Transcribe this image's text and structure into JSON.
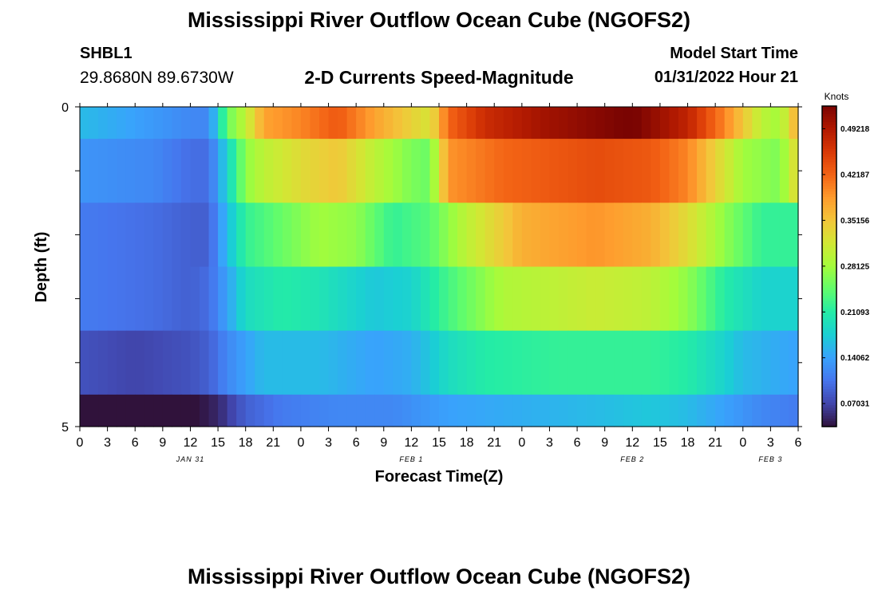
{
  "titles": {
    "top": "Mississippi River Outflow Ocean Cube (NGOFS2)",
    "bottom": "Mississippi River Outflow Ocean Cube (NGOFS2)"
  },
  "station": {
    "id": "SHBL1",
    "coords": "29.8680N  89.6730W"
  },
  "model_start": {
    "label": "Model Start Time",
    "value": "01/31/2022 Hour 21"
  },
  "chart_data": {
    "type": "heatmap",
    "title": "2-D Currents Speed-Magnitude",
    "xlabel": "Forecast Time(Z)",
    "ylabel": "Depth (ft)",
    "x_tick_labels": [
      "0",
      "3",
      "6",
      "9",
      "12",
      "15",
      "18",
      "21",
      "0",
      "3",
      "6",
      "9",
      "12",
      "15",
      "18",
      "21",
      "0",
      "3",
      "6",
      "9",
      "12",
      "15",
      "18",
      "21",
      "0",
      "3",
      "6"
    ],
    "date_labels": [
      {
        "label": "JAN 31",
        "hour": 12
      },
      {
        "label": "FEB 1",
        "hour": 36
      },
      {
        "label": "FEB 2",
        "hour": 60
      },
      {
        "label": "FEB 3",
        "hour": 75
      }
    ],
    "x_range_hours": [
      0,
      78
    ],
    "y_tick_labels": [
      "0",
      "5"
    ],
    "y_range": [
      0,
      5
    ],
    "colorbar": {
      "unit": "Knots",
      "range": [
        0.035,
        0.527
      ],
      "tick_labels": [
        "0.07031",
        "0.14062",
        "0.21093",
        "0.28125",
        "0.35156",
        "0.42187",
        "0.49218"
      ],
      "tick_values": [
        0.07031,
        0.14062,
        0.21093,
        0.28125,
        0.35156,
        0.42187,
        0.49218
      ],
      "colors": [
        "#30123b",
        "#4145ab",
        "#4675ed",
        "#39a2fc",
        "#1bcfd4",
        "#24eca6",
        "#61fc6c",
        "#a4fc3b",
        "#d1e834",
        "#f3c63a",
        "#fe9b2d",
        "#f36315",
        "#d93806",
        "#b11901",
        "#7a0402"
      ]
    },
    "depth_layers": [
      {
        "depth_range": [
          0,
          0.5
        ],
        "keys": [
          [
            0,
            0.16
          ],
          [
            6,
            0.14
          ],
          [
            12,
            0.12
          ],
          [
            14,
            0.12
          ],
          [
            15,
            0.18
          ],
          [
            16,
            0.25
          ],
          [
            18,
            0.3
          ],
          [
            20,
            0.38
          ],
          [
            24,
            0.4
          ],
          [
            28,
            0.43
          ],
          [
            32,
            0.38
          ],
          [
            38,
            0.32
          ],
          [
            40,
            0.42
          ],
          [
            44,
            0.47
          ],
          [
            50,
            0.5
          ],
          [
            60,
            0.53
          ],
          [
            66,
            0.48
          ],
          [
            70,
            0.4
          ],
          [
            74,
            0.3
          ],
          [
            76,
            0.28
          ],
          [
            78,
            0.38
          ]
        ]
      },
      {
        "depth_range": [
          0.5,
          1.5
        ],
        "keys": [
          [
            0,
            0.13
          ],
          [
            8,
            0.12
          ],
          [
            12,
            0.1
          ],
          [
            14,
            0.1
          ],
          [
            16,
            0.18
          ],
          [
            18,
            0.27
          ],
          [
            20,
            0.3
          ],
          [
            24,
            0.33
          ],
          [
            28,
            0.35
          ],
          [
            32,
            0.3
          ],
          [
            36,
            0.26
          ],
          [
            38,
            0.25
          ],
          [
            40,
            0.39
          ],
          [
            46,
            0.42
          ],
          [
            56,
            0.44
          ],
          [
            62,
            0.43
          ],
          [
            66,
            0.4
          ],
          [
            70,
            0.32
          ],
          [
            72,
            0.28
          ],
          [
            76,
            0.26
          ],
          [
            78,
            0.34
          ]
        ]
      },
      {
        "depth_range": [
          1.5,
          2.5
        ],
        "keys": [
          [
            0,
            0.11
          ],
          [
            8,
            0.1
          ],
          [
            12,
            0.09
          ],
          [
            14,
            0.09
          ],
          [
            16,
            0.16
          ],
          [
            18,
            0.22
          ],
          [
            22,
            0.25
          ],
          [
            26,
            0.28
          ],
          [
            30,
            0.27
          ],
          [
            34,
            0.22
          ],
          [
            38,
            0.24
          ],
          [
            42,
            0.3
          ],
          [
            48,
            0.37
          ],
          [
            56,
            0.39
          ],
          [
            62,
            0.37
          ],
          [
            66,
            0.33
          ],
          [
            70,
            0.27
          ],
          [
            74,
            0.22
          ],
          [
            78,
            0.22
          ]
        ]
      },
      {
        "depth_range": [
          2.5,
          3.5
        ],
        "keys": [
          [
            0,
            0.11
          ],
          [
            8,
            0.1
          ],
          [
            12,
            0.09
          ],
          [
            14,
            0.1
          ],
          [
            16,
            0.14
          ],
          [
            18,
            0.19
          ],
          [
            22,
            0.21
          ],
          [
            26,
            0.2
          ],
          [
            32,
            0.17
          ],
          [
            36,
            0.18
          ],
          [
            40,
            0.23
          ],
          [
            46,
            0.29
          ],
          [
            56,
            0.31
          ],
          [
            62,
            0.3
          ],
          [
            66,
            0.27
          ],
          [
            70,
            0.21
          ],
          [
            74,
            0.18
          ],
          [
            78,
            0.18
          ]
        ]
      },
      {
        "depth_range": [
          3.5,
          4.5
        ],
        "keys": [
          [
            0,
            0.08
          ],
          [
            6,
            0.07
          ],
          [
            12,
            0.08
          ],
          [
            14,
            0.09
          ],
          [
            16,
            0.12
          ],
          [
            20,
            0.16
          ],
          [
            26,
            0.16
          ],
          [
            32,
            0.14
          ],
          [
            36,
            0.15
          ],
          [
            40,
            0.19
          ],
          [
            44,
            0.21
          ],
          [
            52,
            0.22
          ],
          [
            62,
            0.22
          ],
          [
            66,
            0.21
          ],
          [
            70,
            0.18
          ],
          [
            72,
            0.16
          ],
          [
            78,
            0.14
          ]
        ]
      },
      {
        "depth_range": [
          4.5,
          5
        ],
        "keys": [
          [
            0,
            0.03
          ],
          [
            4,
            0.02
          ],
          [
            8,
            0.02
          ],
          [
            12,
            0.03
          ],
          [
            15,
            0.05
          ],
          [
            18,
            0.09
          ],
          [
            22,
            0.11
          ],
          [
            28,
            0.12
          ],
          [
            34,
            0.12
          ],
          [
            40,
            0.14
          ],
          [
            48,
            0.15
          ],
          [
            56,
            0.16
          ],
          [
            62,
            0.17
          ],
          [
            66,
            0.16
          ],
          [
            70,
            0.14
          ],
          [
            74,
            0.12
          ],
          [
            78,
            0.11
          ]
        ]
      }
    ]
  }
}
